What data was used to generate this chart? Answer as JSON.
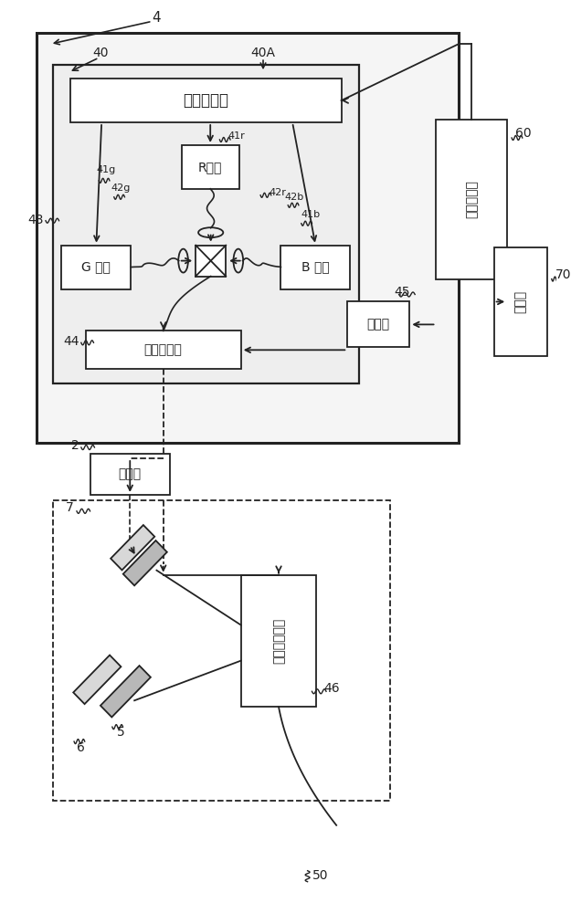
{
  "bg_color": "#ffffff",
  "line_color": "#222222",
  "labels": {
    "guangyuan_kongzhi": "光源控制部",
    "R_guangyuan": "R光源",
    "G_guangyuan": "G 光源",
    "B_guangyuan": "B 光源",
    "guangdiao_yuanjian": "光调制元件",
    "touying_guangxue": "投影光学系统",
    "xitong_kongzhi": "系统控制部",
    "caozuo": "操作部",
    "qudong": "驱动部",
    "tou_jing_xia": "投镜匣"
  },
  "nums": {
    "n4": "4",
    "n40": "40",
    "n40A": "40A",
    "n41r": "41r",
    "n41g": "41g",
    "n41b": "41b",
    "n42r": "42r",
    "n42g": "42g",
    "n42b": "42b",
    "n43": "43",
    "n44": "44",
    "n45": "45",
    "n46": "46",
    "n50": "50",
    "n2": "2",
    "n5": "5",
    "n6": "6",
    "n7": "7",
    "n60": "60",
    "n70": "70"
  }
}
